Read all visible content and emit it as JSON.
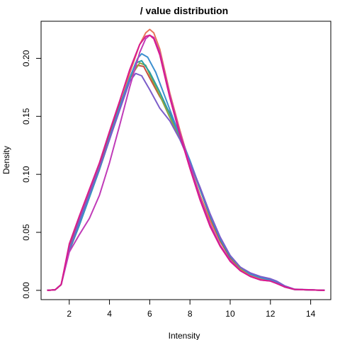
{
  "chart_data": {
    "type": "line",
    "title": "/ value distribution",
    "xlabel": "Intensity",
    "ylabel": "Density",
    "xlim": [
      0.6,
      15.0
    ],
    "ylim": [
      -0.008,
      0.232
    ],
    "x_ticks": [
      2,
      4,
      6,
      8,
      10,
      12,
      14
    ],
    "x_tick_labels": [
      "2",
      "4",
      "6",
      "8",
      "10",
      "12",
      "14"
    ],
    "y_ticks": [
      0.0,
      0.05,
      0.1,
      0.15,
      0.2
    ],
    "y_tick_labels": [
      "0.00",
      "0.05",
      "0.10",
      "0.15",
      "0.20"
    ],
    "grid": false,
    "legend": "none",
    "series": [
      {
        "color": "#E8735A",
        "points": [
          [
            0.9,
            0
          ],
          [
            1.3,
            0.0005
          ],
          [
            1.6,
            0.005
          ],
          [
            2.0,
            0.038
          ],
          [
            2.5,
            0.062
          ],
          [
            3.0,
            0.085
          ],
          [
            3.5,
            0.107
          ],
          [
            4.0,
            0.133
          ],
          [
            4.5,
            0.158
          ],
          [
            5.0,
            0.187
          ],
          [
            5.5,
            0.212
          ],
          [
            5.8,
            0.222
          ],
          [
            6.0,
            0.225
          ],
          [
            6.2,
            0.222
          ],
          [
            6.5,
            0.208
          ],
          [
            7.0,
            0.17
          ],
          [
            7.5,
            0.138
          ],
          [
            8.0,
            0.108
          ],
          [
            8.5,
            0.082
          ],
          [
            9.0,
            0.06
          ],
          [
            9.5,
            0.042
          ],
          [
            10.0,
            0.028
          ],
          [
            10.5,
            0.018
          ],
          [
            11.0,
            0.013
          ],
          [
            11.5,
            0.01
          ],
          [
            12.0,
            0.009
          ],
          [
            12.3,
            0.007
          ],
          [
            12.7,
            0.003
          ],
          [
            13.2,
            0.0008
          ],
          [
            14.7,
            0
          ]
        ]
      },
      {
        "color": "#C94C3C",
        "points": [
          [
            0.9,
            0
          ],
          [
            1.3,
            0.0005
          ],
          [
            1.6,
            0.005
          ],
          [
            2.0,
            0.037
          ],
          [
            2.5,
            0.06
          ],
          [
            3.0,
            0.083
          ],
          [
            3.5,
            0.106
          ],
          [
            4.0,
            0.134
          ],
          [
            4.5,
            0.16
          ],
          [
            5.0,
            0.182
          ],
          [
            5.4,
            0.194
          ],
          [
            5.7,
            0.193
          ],
          [
            6.0,
            0.183
          ],
          [
            6.5,
            0.167
          ],
          [
            7.0,
            0.153
          ],
          [
            7.5,
            0.135
          ],
          [
            8.0,
            0.111
          ],
          [
            8.5,
            0.087
          ],
          [
            9.0,
            0.063
          ],
          [
            9.5,
            0.043
          ],
          [
            10.0,
            0.028
          ],
          [
            10.5,
            0.019
          ],
          [
            11.0,
            0.014
          ],
          [
            11.5,
            0.011
          ],
          [
            12.0,
            0.009
          ],
          [
            12.3,
            0.007
          ],
          [
            12.7,
            0.003
          ],
          [
            13.2,
            0.0008
          ],
          [
            14.7,
            0
          ]
        ]
      },
      {
        "color": "#8FA43F",
        "points": [
          [
            0.9,
            0
          ],
          [
            1.3,
            0.0005
          ],
          [
            1.6,
            0.005
          ],
          [
            2.0,
            0.036
          ],
          [
            2.5,
            0.058
          ],
          [
            3.0,
            0.082
          ],
          [
            3.5,
            0.105
          ],
          [
            4.0,
            0.131
          ],
          [
            4.5,
            0.158
          ],
          [
            5.0,
            0.183
          ],
          [
            5.5,
            0.196
          ],
          [
            5.8,
            0.194
          ],
          [
            6.0,
            0.186
          ],
          [
            6.5,
            0.168
          ],
          [
            7.0,
            0.149
          ],
          [
            7.5,
            0.131
          ],
          [
            8.0,
            0.11
          ],
          [
            8.5,
            0.088
          ],
          [
            9.0,
            0.065
          ],
          [
            9.5,
            0.045
          ],
          [
            10.0,
            0.029
          ],
          [
            10.5,
            0.019
          ],
          [
            11.0,
            0.014
          ],
          [
            11.5,
            0.011
          ],
          [
            12.0,
            0.009
          ],
          [
            12.3,
            0.007
          ],
          [
            12.7,
            0.003
          ],
          [
            13.2,
            0.0008
          ],
          [
            14.7,
            0
          ]
        ]
      },
      {
        "color": "#2A9FA3",
        "points": [
          [
            0.9,
            0
          ],
          [
            1.3,
            0.0005
          ],
          [
            1.6,
            0.005
          ],
          [
            2.0,
            0.034
          ],
          [
            2.5,
            0.056
          ],
          [
            3.0,
            0.08
          ],
          [
            3.5,
            0.104
          ],
          [
            4.0,
            0.13
          ],
          [
            4.5,
            0.157
          ],
          [
            5.0,
            0.182
          ],
          [
            5.3,
            0.196
          ],
          [
            5.6,
            0.198
          ],
          [
            6.0,
            0.188
          ],
          [
            6.5,
            0.171
          ],
          [
            7.0,
            0.152
          ],
          [
            7.5,
            0.133
          ],
          [
            8.0,
            0.111
          ],
          [
            8.5,
            0.087
          ],
          [
            9.0,
            0.064
          ],
          [
            9.5,
            0.044
          ],
          [
            10.0,
            0.029
          ],
          [
            10.5,
            0.02
          ],
          [
            11.0,
            0.014
          ],
          [
            11.5,
            0.011
          ],
          [
            12.0,
            0.009
          ],
          [
            12.3,
            0.007
          ],
          [
            12.7,
            0.003
          ],
          [
            13.2,
            0.0008
          ],
          [
            14.7,
            0
          ]
        ]
      },
      {
        "color": "#3C8FCF",
        "points": [
          [
            0.9,
            0
          ],
          [
            1.3,
            0.0005
          ],
          [
            1.6,
            0.005
          ],
          [
            2.0,
            0.036
          ],
          [
            2.5,
            0.057
          ],
          [
            3.0,
            0.081
          ],
          [
            3.5,
            0.105
          ],
          [
            4.0,
            0.132
          ],
          [
            4.5,
            0.158
          ],
          [
            5.0,
            0.183
          ],
          [
            5.4,
            0.2
          ],
          [
            5.6,
            0.204
          ],
          [
            5.9,
            0.201
          ],
          [
            6.3,
            0.188
          ],
          [
            6.8,
            0.165
          ],
          [
            7.3,
            0.142
          ],
          [
            8.0,
            0.112
          ],
          [
            8.5,
            0.088
          ],
          [
            9.0,
            0.065
          ],
          [
            9.5,
            0.045
          ],
          [
            10.0,
            0.03
          ],
          [
            10.5,
            0.02
          ],
          [
            11.0,
            0.014
          ],
          [
            11.5,
            0.011
          ],
          [
            12.0,
            0.009
          ],
          [
            12.3,
            0.007
          ],
          [
            12.7,
            0.003
          ],
          [
            13.2,
            0.0008
          ],
          [
            14.7,
            0
          ]
        ]
      },
      {
        "color": "#7B5CC9",
        "points": [
          [
            0.9,
            0
          ],
          [
            1.3,
            0.0005
          ],
          [
            1.6,
            0.005
          ],
          [
            2.0,
            0.035
          ],
          [
            2.5,
            0.06
          ],
          [
            3.0,
            0.083
          ],
          [
            3.5,
            0.106
          ],
          [
            4.0,
            0.13
          ],
          [
            4.5,
            0.155
          ],
          [
            5.0,
            0.18
          ],
          [
            5.3,
            0.187
          ],
          [
            5.6,
            0.185
          ],
          [
            6.0,
            0.173
          ],
          [
            6.5,
            0.157
          ],
          [
            7.0,
            0.146
          ],
          [
            7.5,
            0.13
          ],
          [
            8.0,
            0.11
          ],
          [
            8.5,
            0.089
          ],
          [
            9.0,
            0.066
          ],
          [
            9.5,
            0.046
          ],
          [
            10.0,
            0.03
          ],
          [
            10.5,
            0.02
          ],
          [
            11.0,
            0.015
          ],
          [
            11.5,
            0.012
          ],
          [
            12.0,
            0.01
          ],
          [
            12.3,
            0.008
          ],
          [
            12.7,
            0.004
          ],
          [
            13.2,
            0.001
          ],
          [
            14.7,
            0
          ]
        ]
      },
      {
        "color": "#C03BB8",
        "points": [
          [
            0.9,
            0
          ],
          [
            1.3,
            0.0005
          ],
          [
            1.6,
            0.005
          ],
          [
            2.0,
            0.033
          ],
          [
            2.5,
            0.048
          ],
          [
            3.0,
            0.062
          ],
          [
            3.5,
            0.082
          ],
          [
            4.0,
            0.11
          ],
          [
            4.5,
            0.142
          ],
          [
            5.0,
            0.175
          ],
          [
            5.5,
            0.205
          ],
          [
            5.8,
            0.217
          ],
          [
            6.0,
            0.22
          ],
          [
            6.2,
            0.218
          ],
          [
            6.5,
            0.205
          ],
          [
            7.0,
            0.168
          ],
          [
            7.5,
            0.136
          ],
          [
            8.0,
            0.108
          ],
          [
            8.5,
            0.08
          ],
          [
            9.0,
            0.057
          ],
          [
            9.5,
            0.039
          ],
          [
            10.0,
            0.026
          ],
          [
            10.5,
            0.017
          ],
          [
            11.0,
            0.012
          ],
          [
            11.5,
            0.009
          ],
          [
            12.0,
            0.008
          ],
          [
            12.3,
            0.006
          ],
          [
            12.7,
            0.003
          ],
          [
            13.2,
            0.0008
          ],
          [
            14.7,
            0
          ]
        ]
      },
      {
        "color": "#D81B8E",
        "points": [
          [
            0.9,
            0
          ],
          [
            1.3,
            0.0005
          ],
          [
            1.6,
            0.005
          ],
          [
            2.0,
            0.04
          ],
          [
            2.5,
            0.064
          ],
          [
            3.0,
            0.087
          ],
          [
            3.5,
            0.11
          ],
          [
            4.0,
            0.137
          ],
          [
            4.5,
            0.163
          ],
          [
            5.0,
            0.19
          ],
          [
            5.5,
            0.212
          ],
          [
            5.8,
            0.219
          ],
          [
            6.0,
            0.22
          ],
          [
            6.2,
            0.217
          ],
          [
            6.5,
            0.203
          ],
          [
            7.0,
            0.166
          ],
          [
            7.5,
            0.134
          ],
          [
            8.0,
            0.105
          ],
          [
            8.5,
            0.078
          ],
          [
            9.0,
            0.055
          ],
          [
            9.5,
            0.038
          ],
          [
            10.0,
            0.025
          ],
          [
            10.5,
            0.017
          ],
          [
            11.0,
            0.012
          ],
          [
            11.5,
            0.009
          ],
          [
            12.0,
            0.008
          ],
          [
            12.3,
            0.006
          ],
          [
            12.7,
            0.003
          ],
          [
            13.2,
            0.0008
          ],
          [
            14.7,
            0
          ]
        ]
      }
    ]
  }
}
